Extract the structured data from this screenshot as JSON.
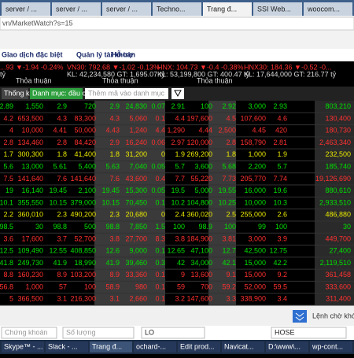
{
  "browser": {
    "tabs": [
      "server / ...",
      "server / ...",
      "server / ...",
      "Techno...",
      "Trang đ...",
      "SSI Web...",
      "woocom..."
    ],
    "url": "vn/MarketWatch?s=15"
  },
  "menu": [
    "Giao dịch đặc biệt",
    "Quản lý tài khoản",
    "Hỗ trợ"
  ],
  "indices": [
    {
      "name": "...93 ▼-1.94 -0.24%",
      "line2": "tỷ",
      "color": "#ff3030"
    },
    {
      "name": "VN30: 792.68 ▼-1.02 -0.13%",
      "line2": "KL: 42,234,580 GT: 1,695.07 tỷ",
      "color": "#ff3030"
    },
    {
      "name": "HNX: 104.73 ▼-0.4 -0.38%",
      "line2": "KL: 53,199,800 GT: 400.47 tỷ",
      "color": "#ff3030"
    },
    {
      "name": "HNX30: 184.36 ▼-0.52 -0...",
      "line2": "KL: 17,644,000 GT: 216.77 tỷ",
      "color": "#ff3030"
    }
  ],
  "index_status": [
    "Thỏa thuận",
    "Thỏa thuận",
    "Thỏa thuận"
  ],
  "toolbar": {
    "stats": "Thống kê",
    "watchlist": "Danh mục: đầu cơ",
    "placeholder": "Thêm mã vào danh mục"
  },
  "table": {
    "rows": [
      {
        "color": "#00e000",
        "cells": [
          "2.89",
          "1,550",
          "2.9",
          "720",
          "2.9",
          "24,830",
          "0.07",
          "2.91",
          "100",
          "2.92",
          "3,000",
          "2.93",
          "803,210"
        ]
      },
      {
        "color": "#ff3030",
        "cells": [
          "4.2",
          "653,500",
          "4.3",
          "83,300",
          "4.3",
          "5,060",
          "0.1",
          "4.4",
          "197,600",
          "4.5",
          "107,600",
          "4.6",
          "130,400"
        ]
      },
      {
        "color": "#ff3030",
        "cells": [
          "4",
          "10,000",
          "4.41",
          "50,000",
          "4.43",
          "1,240",
          "4.4",
          "1,290",
          "4.44",
          "2,500",
          "4.45",
          "420",
          "180,730"
        ]
      },
      {
        "color": "#ff3030",
        "cells": [
          "2.8",
          "134,460",
          "2.8",
          "84,420",
          "2.9",
          "16,240",
          "0.06",
          "2.97",
          "120,000",
          "2.8",
          "158,790",
          "2.81",
          "2,463,340"
        ]
      },
      {
        "color": "#e8e800",
        "cells": [
          "1.7",
          "300,300",
          "1.8",
          "41,400",
          "1.8",
          "31,200",
          "0",
          "1.9",
          "269,200",
          "1.8",
          "1,000",
          "1.9",
          "232,500"
        ]
      },
      {
        "color": "#00e000",
        "cells": [
          "5.6",
          "13,000",
          "5.61",
          "5,400",
          "5.63",
          "7,040",
          "0.05",
          "5.7",
          "3,600",
          "5.68",
          "2,200",
          "5.7",
          "185,740"
        ]
      },
      {
        "color": "#ff3030",
        "cells": [
          "7.5",
          "141,640",
          "7.6",
          "141,640",
          "7.6",
          "43,600",
          "0.4",
          "7.7",
          "55,220",
          "7.73",
          "205,770",
          "7.74",
          "19,126,690"
        ]
      },
      {
        "color": "#00e000",
        "cells": [
          "19",
          "16,140",
          "19.45",
          "2,100",
          "19.45",
          "15,300",
          "0.05",
          "19.5",
          "5,000",
          "19.55",
          "16,000",
          "19.6",
          "880,610"
        ]
      },
      {
        "color": "#00e000",
        "cells": [
          "10.1",
          "355,550",
          "10.15",
          "379,000",
          "10.15",
          "70,450",
          "0.1",
          "10.2",
          "104,800",
          "10.25",
          "10,000",
          "10.3",
          "2,933,510"
        ]
      },
      {
        "color": "#e8e800",
        "cells": [
          "2.2",
          "360,010",
          "2.3",
          "490,200",
          "2.3",
          "20,680",
          "0",
          "2.4",
          "360,020",
          "2.5",
          "255,000",
          "2.6",
          "486,880"
        ]
      },
      {
        "color": "#00e000",
        "cells": [
          "98.5",
          "30",
          "98.8",
          "500",
          "98.8",
          "7,850",
          "1.5",
          "100",
          "98.9",
          "100",
          "99",
          "100",
          "30"
        ]
      },
      {
        "color": "#ff3030",
        "cells": [
          "3.6",
          "17,600",
          "3.7",
          "52,700",
          "3.8",
          "27,700",
          "8.3",
          "3.8",
          "184,900",
          "3.81",
          "3,000",
          "3.9",
          "449,700"
        ]
      },
      {
        "color": "#00e000",
        "cells": [
          "12.5",
          "109,490",
          "12.55",
          "408,850",
          "12.6",
          "9,000",
          "0.1",
          "12.65",
          "47,100",
          "12.7",
          "42,500",
          "12.75",
          "27,400"
        ]
      },
      {
        "color": "#00e000",
        "cells": [
          "41.8",
          "249,730",
          "41.9",
          "18,990",
          "41.9",
          "39,460",
          "0.3",
          "42",
          "34,000",
          "42.1",
          "15,000",
          "42.2",
          "2,119,510"
        ]
      },
      {
        "color": "#ff3030",
        "cells": [
          "8.8",
          "160,230",
          "8.9",
          "103,200",
          "8.9",
          "33,360",
          "0.1",
          "9",
          "13,600",
          "9.1",
          "15,000",
          "9.2",
          "361,458"
        ]
      },
      {
        "color": "#ff3030",
        "cells": [
          "56.8",
          "1,000",
          "57",
          "100",
          "58.9",
          "980",
          "0.1",
          "59",
          "700",
          "59.2",
          "52,000",
          "59.5",
          "333,600"
        ]
      },
      {
        "color": "#ff3030",
        "cells": [
          "5",
          "366,500",
          "3.1",
          "216,300",
          "3.1",
          "2,660",
          "0.1",
          "3.2",
          "147,600",
          "3.3",
          "338,900",
          "3.4",
          "311,400"
        ]
      }
    ]
  },
  "pending": "Lệnh chờ khớp",
  "order": [
    "Chứng khoán",
    "Số lượng",
    "LO",
    "HOSE"
  ],
  "taskbar": [
    "Skype™ - ...",
    "Slack - ...",
    "Trang đ...",
    "ochard-...",
    "Edit prod...",
    "Navicat...",
    "D:\\www\\...",
    "wp-cont..."
  ]
}
